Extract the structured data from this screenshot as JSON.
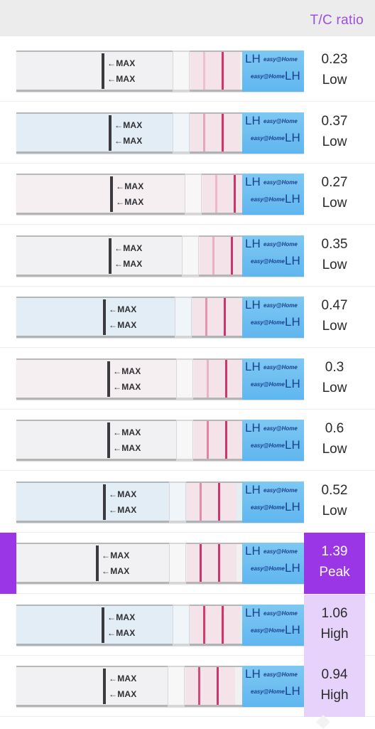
{
  "header": {
    "title": "T/C ratio"
  },
  "strip_text": {
    "max_label": "←MAX",
    "lh_label": "LH",
    "brand_label": "easy@Home"
  },
  "colors": {
    "accent": "#9b36e6",
    "high_bg": "#e7d2fb",
    "header_bg": "#ececec",
    "header_text": "#9b4fe0",
    "test_line": "#d2346a"
  },
  "rows": [
    {
      "value": "0.23",
      "level": "Low",
      "t_line": 0.2
    },
    {
      "value": "0.37",
      "level": "Low",
      "t_line": 0.35
    },
    {
      "value": "0.27",
      "level": "Low",
      "t_line": 0.25
    },
    {
      "value": "0.35",
      "level": "Low",
      "t_line": 0.3
    },
    {
      "value": "0.47",
      "level": "Low",
      "t_line": 0.45
    },
    {
      "value": "0.3",
      "level": "Low",
      "t_line": 0.28
    },
    {
      "value": "0.6",
      "level": "Low",
      "t_line": 0.55
    },
    {
      "value": "0.52",
      "level": "Low",
      "t_line": 0.5
    },
    {
      "value": "1.39",
      "level": "Peak",
      "t_line": 1.0
    },
    {
      "value": "1.06",
      "level": "High",
      "t_line": 0.95
    },
    {
      "value": "0.94",
      "level": "High",
      "t_line": 0.88
    }
  ]
}
